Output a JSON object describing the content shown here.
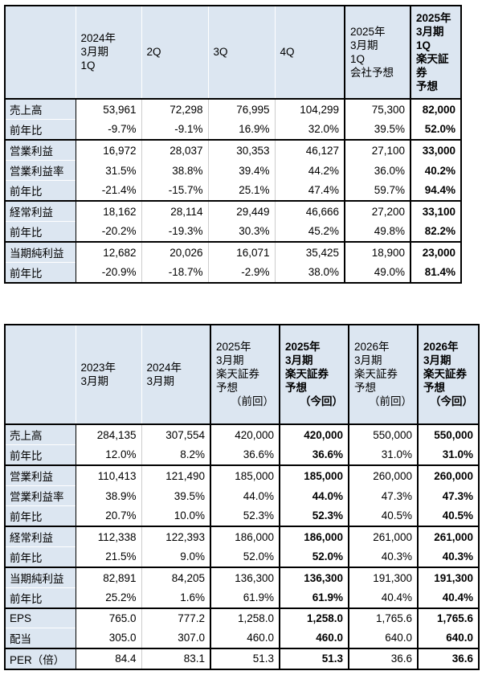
{
  "colors": {
    "header_bg": "#DCE6F1",
    "border": "#000000",
    "grid": "#CCCCCC",
    "page_bg": "#FFFFFF"
  },
  "table1": {
    "headers": [
      {
        "text": ""
      },
      {
        "text": "2024年\n3月期\n1Q"
      },
      {
        "text": "2Q"
      },
      {
        "text": "3Q"
      },
      {
        "text": "4Q"
      },
      {
        "text": "2025年\n3月期\n1Q\n会社予想"
      },
      {
        "text": "2025年\n3月期\n1Q\n楽天証券\n予想"
      }
    ],
    "rows": [
      {
        "label": "売上高",
        "group_start": true,
        "values": [
          "53,961",
          "72,298",
          "76,995",
          "104,299",
          "75,300",
          "82,000"
        ]
      },
      {
        "label": "前年比",
        "group_start": false,
        "values": [
          "-9.7%",
          "-9.1%",
          "16.9%",
          "32.0%",
          "39.5%",
          "52.0%"
        ]
      },
      {
        "label": "営業利益",
        "group_start": true,
        "values": [
          "16,972",
          "28,037",
          "30,353",
          "46,127",
          "27,100",
          "33,000"
        ]
      },
      {
        "label": "営業利益率",
        "group_start": false,
        "values": [
          "31.5%",
          "38.8%",
          "39.4%",
          "44.2%",
          "36.0%",
          "40.2%"
        ]
      },
      {
        "label": "前年比",
        "group_start": false,
        "values": [
          "-21.4%",
          "-15.7%",
          "25.1%",
          "47.4%",
          "59.7%",
          "94.4%"
        ]
      },
      {
        "label": "経常利益",
        "group_start": true,
        "values": [
          "18,162",
          "28,114",
          "29,449",
          "46,666",
          "27,200",
          "33,100"
        ]
      },
      {
        "label": "前年比",
        "group_start": false,
        "values": [
          "-20.2%",
          "-19.3%",
          "30.3%",
          "45.2%",
          "49.8%",
          "82.2%"
        ]
      },
      {
        "label": "当期純利益",
        "group_start": true,
        "values": [
          "12,682",
          "20,026",
          "16,071",
          "35,425",
          "18,900",
          "23,000"
        ]
      },
      {
        "label": "前年比",
        "group_start": false,
        "values": [
          "-20.9%",
          "-18.7%",
          "-2.9%",
          "38.0%",
          "49.0%",
          "81.4%"
        ]
      }
    ]
  },
  "table2": {
    "headers": [
      {
        "text": ""
      },
      {
        "text": "2023年\n3月期"
      },
      {
        "text": "2024年\n3月期"
      },
      {
        "text": "2025年\n3月期\n楽天証券\n予想",
        "tag": "（前回）"
      },
      {
        "text": "2025年\n3月期\n楽天証券\n予想",
        "tag": "（今回）"
      },
      {
        "text": "2026年\n3月期\n楽天証券\n予想",
        "tag": "（前回）"
      },
      {
        "text": "2026年\n3月期\n楽天証券\n予想",
        "tag": "（今回）"
      }
    ],
    "rows": [
      {
        "label": "売上高",
        "group_start": true,
        "values": [
          "284,135",
          "307,554",
          "420,000",
          "420,000",
          "550,000",
          "550,000"
        ]
      },
      {
        "label": "前年比",
        "group_start": false,
        "values": [
          "12.0%",
          "8.2%",
          "36.6%",
          "36.6%",
          "31.0%",
          "31.0%"
        ]
      },
      {
        "label": "営業利益",
        "group_start": true,
        "values": [
          "110,413",
          "121,490",
          "185,000",
          "185,000",
          "260,000",
          "260,000"
        ]
      },
      {
        "label": "営業利益率",
        "group_start": false,
        "values": [
          "38.9%",
          "39.5%",
          "44.0%",
          "44.0%",
          "47.3%",
          "47.3%"
        ]
      },
      {
        "label": "前年比",
        "group_start": false,
        "values": [
          "20.7%",
          "10.0%",
          "52.3%",
          "52.3%",
          "40.5%",
          "40.5%"
        ]
      },
      {
        "label": "経常利益",
        "group_start": true,
        "values": [
          "112,338",
          "122,393",
          "186,000",
          "186,000",
          "261,000",
          "261,000"
        ]
      },
      {
        "label": "前年比",
        "group_start": false,
        "values": [
          "21.5%",
          "9.0%",
          "52.0%",
          "52.0%",
          "40.3%",
          "40.3%"
        ]
      },
      {
        "label": "当期純利益",
        "group_start": true,
        "values": [
          "82,891",
          "84,205",
          "136,300",
          "136,300",
          "191,300",
          "191,300"
        ]
      },
      {
        "label": "前年比",
        "group_start": false,
        "values": [
          "25.2%",
          "1.6%",
          "61.9%",
          "61.9%",
          "40.4%",
          "40.4%"
        ]
      },
      {
        "label": "EPS",
        "group_start": true,
        "values": [
          "765.0",
          "777.2",
          "1,258.0",
          "1,258.0",
          "1,765.6",
          "1,765.6"
        ]
      },
      {
        "label": "配当",
        "group_start": false,
        "values": [
          "305.0",
          "307.0",
          "460.0",
          "460.0",
          "640.0",
          "640.0"
        ]
      },
      {
        "label": "PER（倍）",
        "group_start": true,
        "values": [
          "84.4",
          "83.1",
          "51.3",
          "51.3",
          "36.6",
          "36.6"
        ]
      }
    ]
  }
}
